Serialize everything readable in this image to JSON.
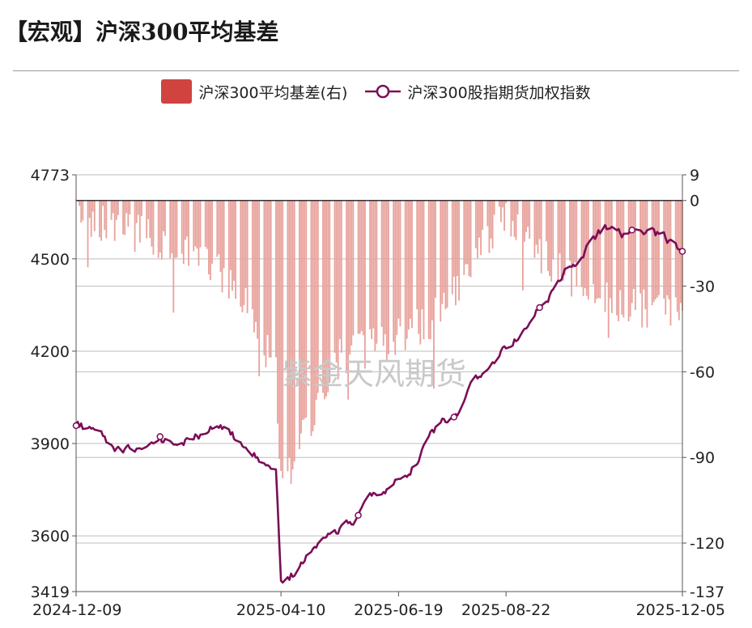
{
  "header": {
    "title": "【宏观】沪深300平均基差"
  },
  "colors": {
    "bar": "#e8a19b",
    "line": "#7b0d57",
    "grid": "#bdbdbd"
  },
  "watermark": "紫金天风期货",
  "chart_data": {
    "type": "bar+line",
    "legend": {
      "position": "top-center",
      "bar_series": "沪深300平均基差(右)",
      "line_series": "沪深300股指期货加权指数"
    },
    "x_ticks": [
      "2024-12-09",
      "2025-04-10",
      "2025-06-19",
      "2025-08-22",
      "2025-12-05"
    ],
    "y_left": {
      "min": 3419,
      "max": 4773,
      "ticks": [
        3419,
        3600,
        3900,
        4200,
        4500,
        4773
      ]
    },
    "y_right": {
      "min": -137,
      "max": 9,
      "ticks": [
        9,
        0,
        -30,
        -60,
        -90,
        -120,
        -137
      ]
    },
    "series": [
      {
        "name": "沪深300股指期货加权指数",
        "type": "line",
        "axis": "left",
        "anchor_dates": [
          "2024-12-09",
          "2025-01-13",
          "2025-03-03",
          "2025-04-07",
          "2025-04-10",
          "2025-06-19",
          "2025-08-22",
          "2025-10-20",
          "2025-12-05"
        ],
        "values": [
          3970,
          3860,
          3950,
          3800,
          3450,
          3780,
          4200,
          4600,
          4540
        ]
      },
      {
        "name": "沪深300平均基差(右)",
        "type": "bar",
        "axis": "right",
        "anchor_dates": [
          "2024-12-09",
          "2025-01-15",
          "2025-02-14",
          "2025-03-14",
          "2025-04-07",
          "2025-04-10",
          "2025-05-15",
          "2025-06-19",
          "2025-07-14",
          "2025-08-07",
          "2025-08-22",
          "2025-09-22",
          "2025-10-20",
          "2025-11-14",
          "2025-12-05"
        ],
        "values": [
          -5,
          -12,
          -18,
          -30,
          -60,
          -100,
          -55,
          -48,
          -40,
          -15,
          -5,
          -25,
          -35,
          -38,
          -40
        ]
      }
    ]
  }
}
